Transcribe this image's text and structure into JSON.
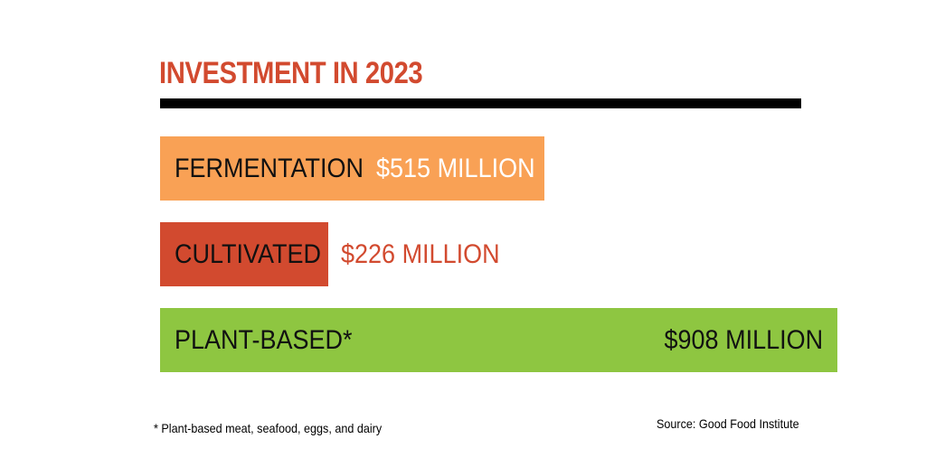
{
  "chart_data": {
    "type": "bar",
    "orientation": "horizontal",
    "title": "INVESTMENT IN 2023",
    "unit": "MILLION",
    "categories": [
      "FERMENTATION",
      "CULTIVATED",
      "PLANT-BASED*"
    ],
    "values": [
      515,
      226,
      908
    ],
    "value_labels": [
      "$515 MILLION",
      "$226 MILLION",
      "$908 MILLION"
    ],
    "bar_colors": [
      "#f9a155",
      "#d24a2f",
      "#8ec641"
    ],
    "category_label_colors": [
      "#111111",
      "#111111",
      "#111111"
    ],
    "value_label_colors": [
      "#ffffff",
      "#d24a2f",
      "#111111"
    ],
    "xlim": [
      0,
      908
    ],
    "grid": false
  },
  "colors": {
    "title": "#d24a2f",
    "rule": "#000000"
  },
  "footnote": "* Plant-based meat, seafood, eggs, and dairy",
  "source": "Source: Good Food Institute"
}
